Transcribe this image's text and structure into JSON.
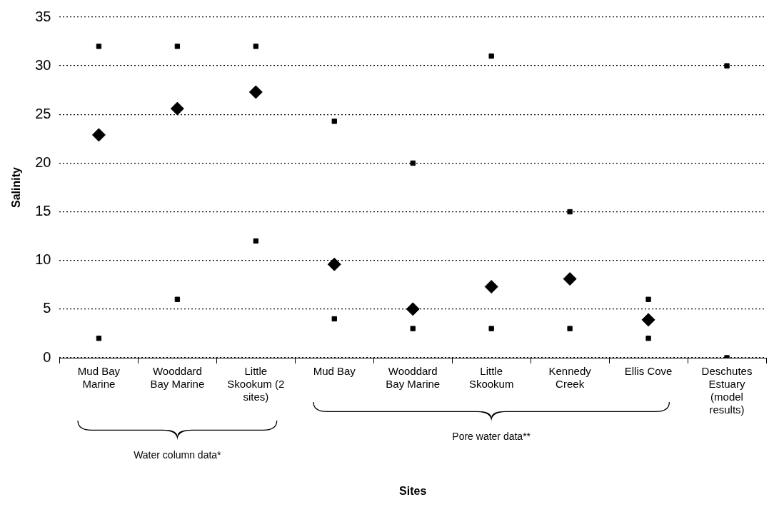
{
  "chart_data": {
    "type": "scatter",
    "ylabel": "Salinity",
    "categories": [
      "Mud Bay Marine",
      "Wooddard Bay Marine",
      "Little Skookum (2 sites)",
      "Mud Bay",
      "Wooddard Bay Marine",
      "Little Skookum",
      "Kennedy Creek",
      "Ellis Cove",
      "Deschutes Estuary (model results)"
    ],
    "series": [
      {
        "color": "#000000",
        "marker": "square",
        "values": [
          32,
          32,
          32,
          24.3,
          20,
          31,
          15,
          6,
          30
        ]
      },
      {
        "color": "#000000",
        "marker": "square",
        "values": [
          2,
          6,
          12,
          4,
          3,
          3,
          3,
          2,
          0
        ]
      },
      {
        "color": "#000000",
        "marker": "diamond",
        "values": [
          22.9,
          25.6,
          27.3,
          9.6,
          5.0,
          7.3,
          8.1,
          3.9,
          null
        ]
      }
    ],
    "ylim": [
      0,
      35
    ],
    "yticks": [
      0,
      5,
      10,
      15,
      20,
      25,
      30,
      35
    ],
    "grid": "y",
    "legend": false,
    "annotations": [
      "Water column data*",
      "Pore water data**",
      "Sites"
    ]
  }
}
